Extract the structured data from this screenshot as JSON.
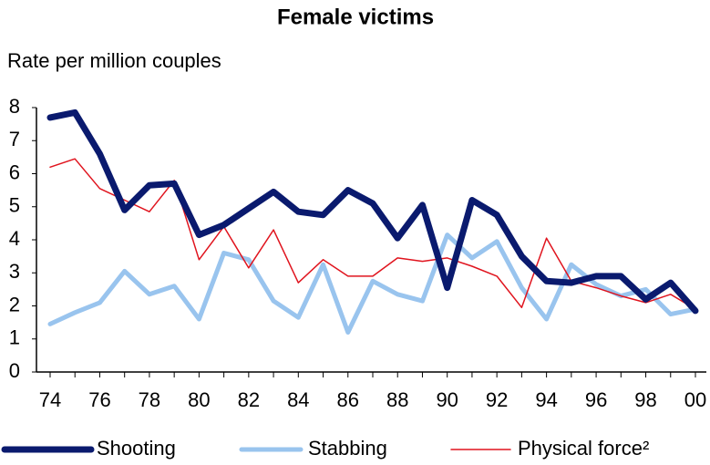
{
  "chart_data": {
    "type": "line",
    "title": "Female victims",
    "subtitle": "Rate per million couples",
    "categories": [
      "74",
      null,
      "76",
      null,
      "78",
      null,
      "80",
      null,
      "82",
      null,
      "84",
      null,
      "86",
      null,
      "88",
      null,
      "90",
      null,
      "92",
      null,
      "94",
      null,
      "96",
      null,
      "98",
      null,
      "00"
    ],
    "series": [
      {
        "name": "Shooting",
        "color": "#0a1a6e",
        "values": [
          7.7,
          7.85,
          6.6,
          4.9,
          5.65,
          5.7,
          4.15,
          4.45,
          4.95,
          5.45,
          4.85,
          4.75,
          5.5,
          5.1,
          4.05,
          5.05,
          2.55,
          5.2,
          4.75,
          3.5,
          2.75,
          2.7,
          2.9,
          2.9,
          2.2,
          2.7,
          1.85
        ]
      },
      {
        "name": "Stabbing",
        "color": "#99c4ee",
        "values": [
          1.45,
          1.8,
          2.1,
          3.05,
          2.35,
          2.6,
          1.6,
          3.6,
          3.4,
          2.15,
          1.65,
          3.25,
          1.2,
          2.75,
          2.35,
          2.15,
          4.15,
          3.45,
          3.95,
          2.55,
          1.6,
          3.25,
          2.65,
          2.3,
          2.5,
          1.75,
          1.9
        ]
      },
      {
        "name": "Physical force²",
        "color": "#e0141e",
        "values": [
          6.2,
          6.45,
          5.55,
          5.2,
          4.85,
          5.8,
          3.4,
          4.4,
          3.15,
          4.3,
          2.7,
          3.4,
          2.9,
          2.9,
          3.45,
          3.35,
          3.45,
          3.2,
          2.9,
          1.95,
          4.05,
          2.75,
          2.55,
          2.3,
          2.1,
          2.35,
          1.9
        ]
      }
    ],
    "ylim": [
      0,
      8
    ],
    "yticks": [
      0,
      1,
      2,
      3,
      4,
      5,
      6,
      7,
      8
    ],
    "grid": false,
    "legend": "bottom"
  }
}
